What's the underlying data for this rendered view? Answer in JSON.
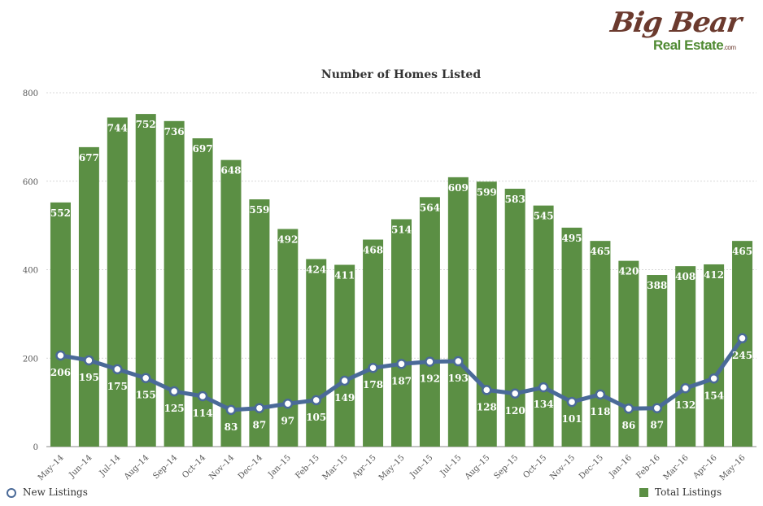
{
  "logo": {
    "big": "Big Bear",
    "real_estate": "Real Estate",
    "com": ".com"
  },
  "chart_data": {
    "type": "bar",
    "title": "Number of Homes Listed",
    "xlabel": "",
    "ylabel": "",
    "ylim": [
      0,
      800
    ],
    "yticks": [
      0,
      200,
      400,
      600,
      800
    ],
    "grid": true,
    "legend_placement": "bottom",
    "categories": [
      "May–14",
      "Jun–14",
      "Jul–14",
      "Aug–14",
      "Sep–14",
      "Oct–14",
      "Nov–14",
      "Dec–14",
      "Jan–15",
      "Feb–15",
      "Mar–15",
      "Apr–15",
      "May–15",
      "Jun–15",
      "Jul–15",
      "Aug–15",
      "Sep–15",
      "Oct–15",
      "Nov–15",
      "Dec–15",
      "Jan–16",
      "Feb–16",
      "Mar–16",
      "Apr–16",
      "May–16"
    ],
    "series": [
      {
        "name": "Total Listings",
        "type": "bar",
        "color": "#5b8f44",
        "values": [
          552,
          677,
          744,
          752,
          736,
          697,
          648,
          559,
          492,
          424,
          411,
          468,
          514,
          564,
          609,
          599,
          583,
          545,
          495,
          465,
          420,
          388,
          408,
          412,
          465
        ]
      },
      {
        "name": "New Listings",
        "type": "line",
        "color": "#4a6a98",
        "values": [
          206,
          195,
          175,
          155,
          125,
          114,
          83,
          87,
          97,
          105,
          149,
          178,
          187,
          192,
          193,
          128,
          120,
          134,
          101,
          118,
          86,
          87,
          132,
          154,
          245
        ]
      }
    ]
  }
}
